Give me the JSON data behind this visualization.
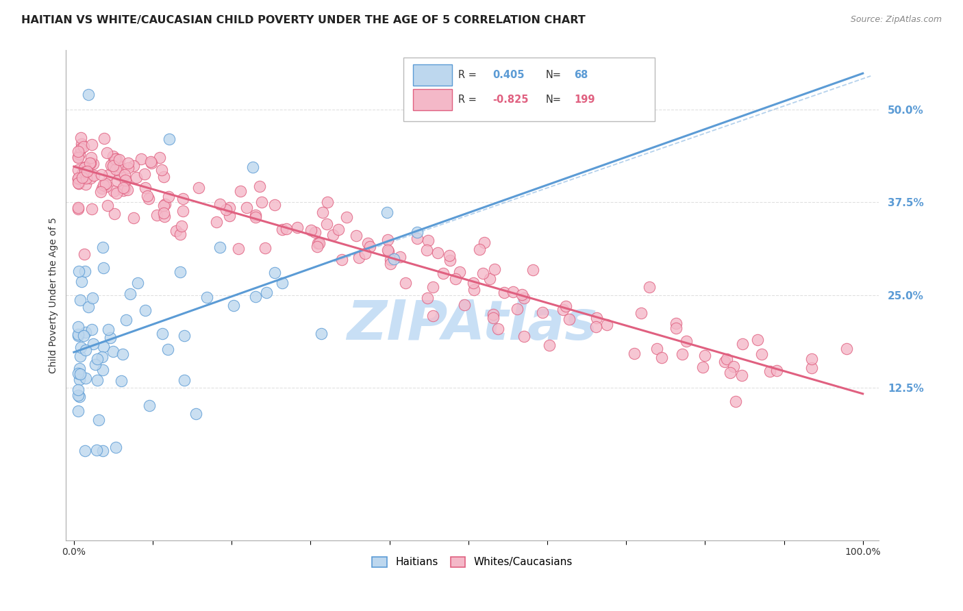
{
  "title": "HAITIAN VS WHITE/CAUCASIAN CHILD POVERTY UNDER THE AGE OF 5 CORRELATION CHART",
  "source": "Source: ZipAtlas.com",
  "ylabel": "Child Poverty Under the Age of 5",
  "haitian_R": 0.405,
  "haitian_N": 68,
  "white_R": -0.825,
  "white_N": 199,
  "haitian_color": "#5b9bd5",
  "haitian_fill": "#bdd7ee",
  "white_color": "#e06080",
  "white_fill": "#f4b8c8",
  "legend_haitian_label": "Haitians",
  "legend_white_label": "Whites/Caucasians",
  "watermark_color": "#c8dff5",
  "background_color": "#ffffff",
  "grid_color": "#cccccc",
  "tick_color": "#5b9bd5",
  "ytick_labels": [
    "12.5%",
    "25.0%",
    "37.5%",
    "50.0%"
  ],
  "ytick_vals": [
    0.125,
    0.25,
    0.375,
    0.5
  ],
  "xlim": [
    -0.01,
    1.02
  ],
  "ylim": [
    -0.08,
    0.58
  ]
}
